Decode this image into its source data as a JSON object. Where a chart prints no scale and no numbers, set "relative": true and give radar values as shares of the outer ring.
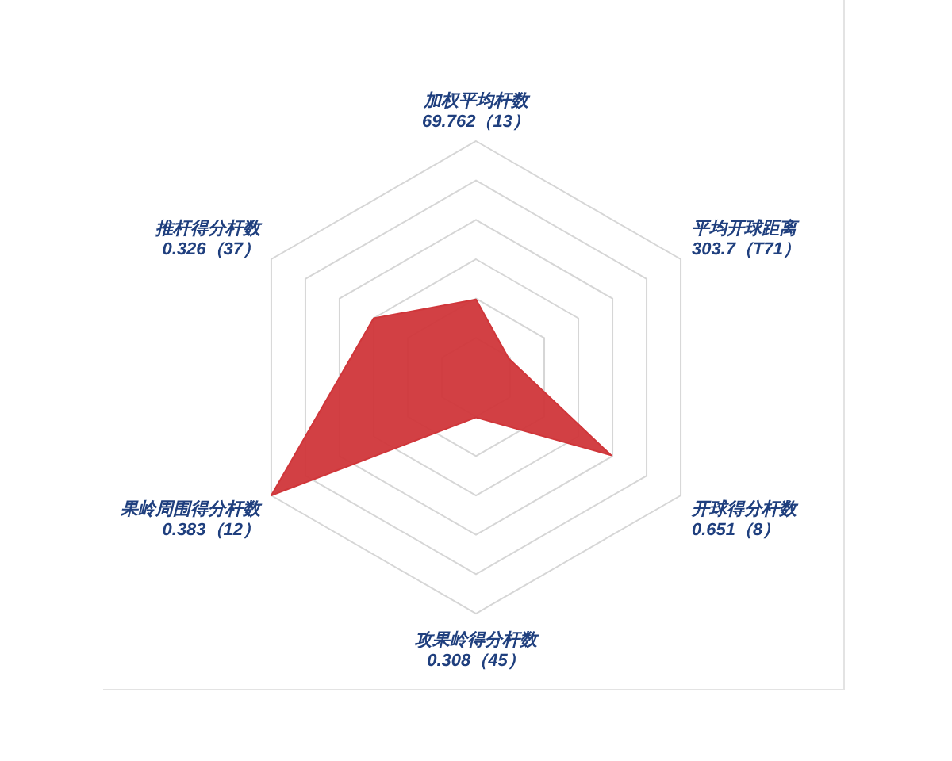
{
  "chart_data": {
    "type": "radar",
    "relative": true,
    "grid": true,
    "categories": [
      "加权平均杆数\n69.762（13）",
      "平均开球距离\n303.7（T71）",
      "开球得分杆数\n0.651（8）",
      "攻果岭得分杆数\n0.308（45）",
      "果岭周围得分杆数\n0.383（12）",
      "推杆得分杆数\n0.326（37）"
    ],
    "series": [
      {
        "color": "#d0363a",
        "values": [
          0.33,
          0.16,
          0.66,
          0.17,
          1,
          0.5
        ]
      }
    ]
  }
}
